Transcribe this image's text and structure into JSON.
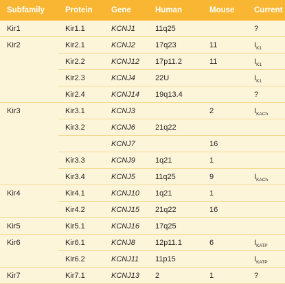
{
  "headers": {
    "subfamily": "Subfamily",
    "protein": "Protein",
    "gene": "Gene",
    "human": "Human",
    "mouse": "Mouse",
    "current": "Current"
  },
  "rows": [
    {
      "subfamily": "Kir1",
      "protein": "Kir1.1",
      "gene": "KCNJ1",
      "human": "11q25",
      "mouse": "",
      "current_main": "?",
      "current_sub": ""
    },
    {
      "subfamily": "Kir2",
      "protein": "Kir2.1",
      "gene": "KCNJ2",
      "human": "17q23",
      "mouse": "11",
      "current_main": "I",
      "current_sub": "K1"
    },
    {
      "subfamily": "",
      "protein": "Kir2.2",
      "gene": "KCNJ12",
      "human": "17p11.2",
      "mouse": "11",
      "current_main": "I",
      "current_sub": "K1"
    },
    {
      "subfamily": "",
      "protein": "Kir2.3",
      "gene": "KCNJ4",
      "human": "22U",
      "mouse": "",
      "current_main": "I",
      "current_sub": "K1"
    },
    {
      "subfamily": "",
      "protein": "Kir2.4",
      "gene": "KCNJ14",
      "human": "19q13.4",
      "mouse": "",
      "current_main": "?",
      "current_sub": ""
    },
    {
      "subfamily": "Kir3",
      "protein": "Kir3.1",
      "gene": "KCNJ3",
      "human": "",
      "mouse": "2",
      "current_main": "I",
      "current_sub": "KACh"
    },
    {
      "subfamily": "",
      "protein": "Kir3.2",
      "gene": "KCNJ6",
      "human": "21q22",
      "mouse": "",
      "current_main": "",
      "current_sub": ""
    },
    {
      "subfamily": "",
      "protein": "",
      "gene": "KCNJ7",
      "human": "",
      "mouse": "16",
      "current_main": "",
      "current_sub": ""
    },
    {
      "subfamily": "",
      "protein": "Kir3.3",
      "gene": "KCNJ9",
      "human": "1q21",
      "mouse": "1",
      "current_main": "",
      "current_sub": ""
    },
    {
      "subfamily": "",
      "protein": "Kir3.4",
      "gene": "KCNJ5",
      "human": "11q25",
      "mouse": "9",
      "current_main": "I",
      "current_sub": "KACh"
    },
    {
      "subfamily": "Kir4",
      "protein": "Kir4.1",
      "gene": "KCNJ10",
      "human": "1q21",
      "mouse": "1",
      "current_main": "",
      "current_sub": ""
    },
    {
      "subfamily": "",
      "protein": "Kir4.2",
      "gene": "KCNJ15",
      "human": "21q22",
      "mouse": "16",
      "current_main": "",
      "current_sub": ""
    },
    {
      "subfamily": "Kir5",
      "protein": "Kir5.1",
      "gene": "KCNJ16",
      "human": "17q25",
      "mouse": "",
      "current_main": "",
      "current_sub": ""
    },
    {
      "subfamily": "Kir6",
      "protein": "Kir6.1",
      "gene": "KCNJ8",
      "human": "12p11.1",
      "mouse": "6",
      "current_main": "I",
      "current_sub": "KATP"
    },
    {
      "subfamily": "",
      "protein": "Kir6.2",
      "gene": "KCNJ11",
      "human": "11p15",
      "mouse": "",
      "current_main": "I",
      "current_sub": "KATP"
    },
    {
      "subfamily": "Kir7",
      "protein": "Kir7.1",
      "gene": "KCNJ13",
      "human": "2",
      "mouse": "1",
      "current_main": "?",
      "current_sub": ""
    }
  ]
}
